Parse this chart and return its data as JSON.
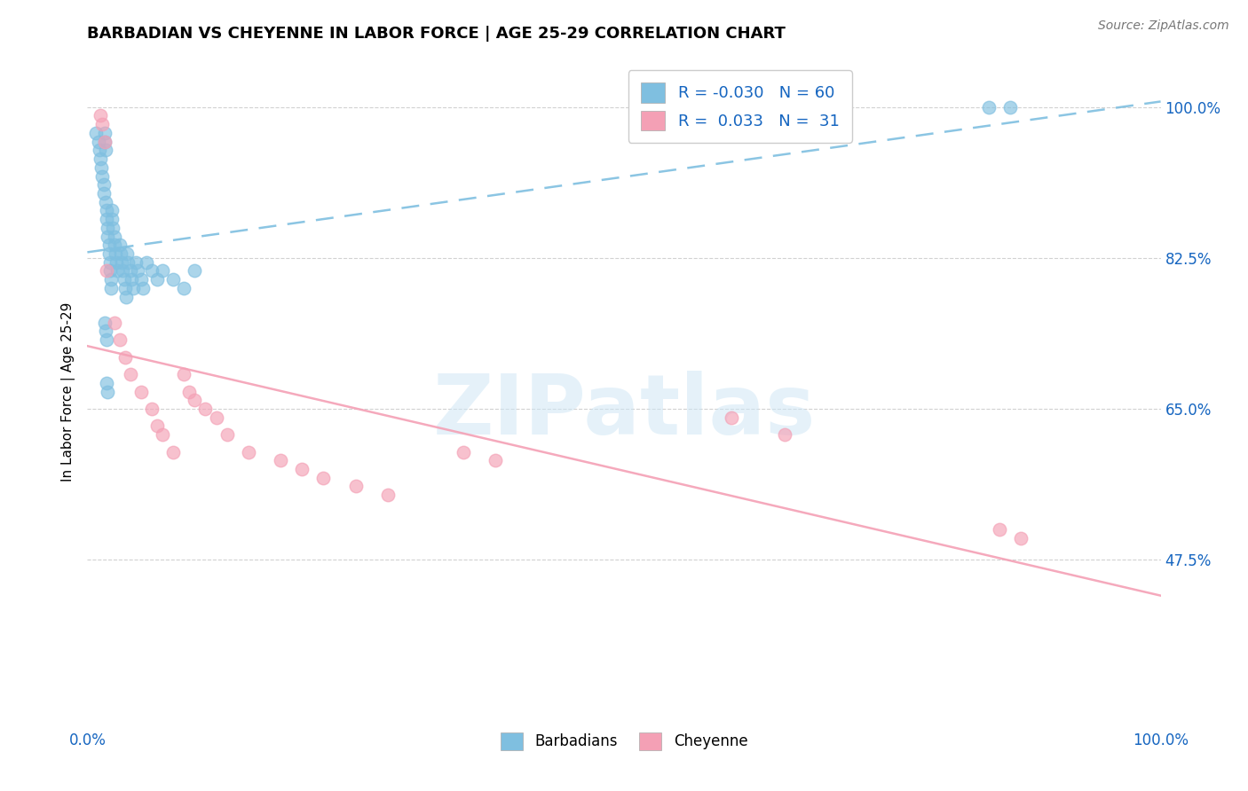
{
  "title": "BARBADIAN VS CHEYENNE IN LABOR FORCE | AGE 25-29 CORRELATION CHART",
  "source_text": "Source: ZipAtlas.com",
  "ylabel": "In Labor Force | Age 25-29",
  "y_tick_vals": [
    0.475,
    0.65,
    0.825,
    1.0
  ],
  "y_tick_labels": [
    "47.5%",
    "65.0%",
    "82.5%",
    "100.0%"
  ],
  "x_range": [
    0.0,
    1.0
  ],
  "y_range": [
    0.28,
    1.06
  ],
  "legend_R1": "-0.030",
  "legend_N1": "60",
  "legend_R2": "0.033",
  "legend_N2": "31",
  "barbadian_color": "#7fbfe0",
  "cheyenne_color": "#f4a0b5",
  "watermark_text": "ZIPatlas",
  "barbadian_x": [
    0.008,
    0.01,
    0.011,
    0.012,
    0.013,
    0.014,
    0.015,
    0.015,
    0.016,
    0.016,
    0.017,
    0.017,
    0.018,
    0.018,
    0.019,
    0.019,
    0.02,
    0.02,
    0.021,
    0.021,
    0.022,
    0.022,
    0.023,
    0.023,
    0.024,
    0.025,
    0.025,
    0.026,
    0.027,
    0.028,
    0.03,
    0.031,
    0.032,
    0.033,
    0.034,
    0.035,
    0.036,
    0.037,
    0.038,
    0.04,
    0.041,
    0.043,
    0.045,
    0.047,
    0.05,
    0.052,
    0.055,
    0.06,
    0.065,
    0.07,
    0.08,
    0.09,
    0.1,
    0.016,
    0.017,
    0.018,
    0.84,
    0.86,
    0.018,
    0.019
  ],
  "barbadian_y": [
    0.97,
    0.96,
    0.95,
    0.94,
    0.93,
    0.92,
    0.91,
    0.9,
    0.97,
    0.96,
    0.95,
    0.89,
    0.88,
    0.87,
    0.86,
    0.85,
    0.84,
    0.83,
    0.82,
    0.81,
    0.8,
    0.79,
    0.88,
    0.87,
    0.86,
    0.85,
    0.84,
    0.83,
    0.82,
    0.81,
    0.84,
    0.83,
    0.82,
    0.81,
    0.8,
    0.79,
    0.78,
    0.83,
    0.82,
    0.81,
    0.8,
    0.79,
    0.82,
    0.81,
    0.8,
    0.79,
    0.82,
    0.81,
    0.8,
    0.81,
    0.8,
    0.79,
    0.81,
    0.75,
    0.74,
    0.73,
    1.0,
    1.0,
    0.68,
    0.67
  ],
  "cheyenne_x": [
    0.012,
    0.014,
    0.016,
    0.018,
    0.025,
    0.03,
    0.035,
    0.04,
    0.05,
    0.06,
    0.065,
    0.07,
    0.08,
    0.09,
    0.095,
    0.1,
    0.11,
    0.12,
    0.13,
    0.15,
    0.18,
    0.2,
    0.22,
    0.25,
    0.28,
    0.35,
    0.38,
    0.6,
    0.65,
    0.85,
    0.87
  ],
  "cheyenne_y": [
    0.99,
    0.98,
    0.96,
    0.81,
    0.75,
    0.73,
    0.71,
    0.69,
    0.67,
    0.65,
    0.63,
    0.62,
    0.6,
    0.69,
    0.67,
    0.66,
    0.65,
    0.64,
    0.62,
    0.6,
    0.59,
    0.58,
    0.57,
    0.56,
    0.55,
    0.6,
    0.59,
    0.64,
    0.62,
    0.51,
    0.5
  ]
}
